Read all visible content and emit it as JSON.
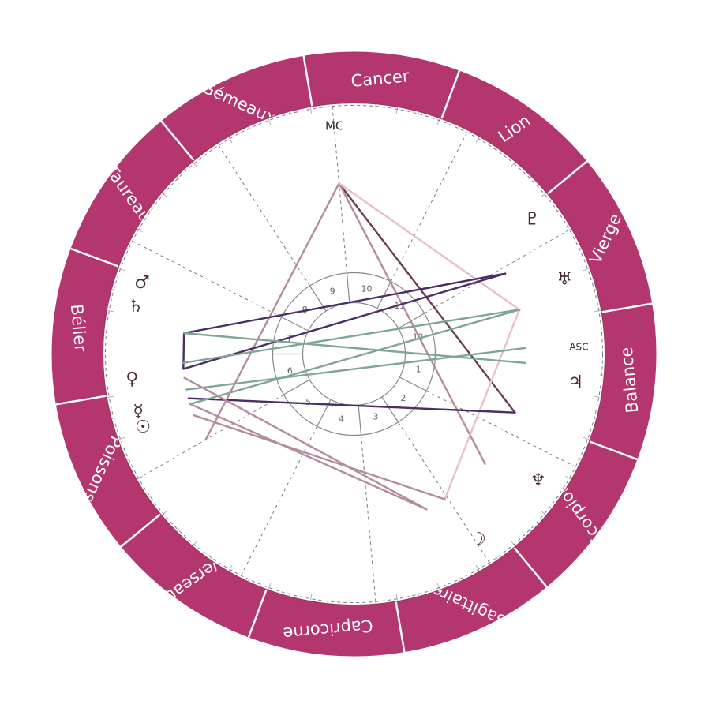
{
  "colors": {
    "ring": "#b3366f",
    "ring_divider": "#ffffff",
    "sign_text": "#ffffff",
    "dashed": "#7a7a7a",
    "inner_circle": "#888888",
    "glyph": "#4a2a32",
    "aspect_purple": "#4a2f66",
    "aspect_mauve": "#b48b9e",
    "aspect_green": "#7fa59b",
    "aspect_pink": "#e8bfd0",
    "aspect_plum": "#6b3a55"
  },
  "signs": [
    {
      "name": "Bélier",
      "start": -9.6
    },
    {
      "name": "Taureau",
      "start": 20.4
    },
    {
      "name": "Gémeaux",
      "start": 50.4
    },
    {
      "name": "Cancer",
      "start": 80.4
    },
    {
      "name": "Lion",
      "start": 110.4
    },
    {
      "name": "Vierge",
      "start": 140.4
    },
    {
      "name": "Balance",
      "start": 170.4
    },
    {
      "name": "Scorpion",
      "start": 200.4
    },
    {
      "name": "Sagittaire",
      "start": 230.4
    },
    {
      "name": "Capricorne",
      "start": 260.4
    },
    {
      "name": "Verseau",
      "start": 290.4
    },
    {
      "name": "Poissons",
      "start": 320.4
    }
  ],
  "houses": [
    {
      "number": "1",
      "cusp": 180
    },
    {
      "number": "2",
      "cusp": 207
    },
    {
      "number": "3",
      "cusp": 237
    },
    {
      "number": "4",
      "cusp": 265
    },
    {
      "number": "5",
      "cusp": 297
    },
    {
      "number": "6",
      "cusp": 330
    },
    {
      "number": "7",
      "cusp": 0
    },
    {
      "number": "8",
      "cusp": 27
    },
    {
      "number": "9",
      "cusp": 57
    },
    {
      "number": "10",
      "cusp": 85
    },
    {
      "number": "11",
      "cusp": 117
    },
    {
      "number": "12",
      "cusp": 150
    }
  ],
  "axes": {
    "asc_label": "ASC",
    "mc_label": "MC"
  },
  "planets": [
    {
      "key": "pluto",
      "glyph": "♇",
      "angle": 142.9
    },
    {
      "key": "uranus",
      "glyph": "♅",
      "angle": 160.5
    },
    {
      "key": "jupiter",
      "glyph": "♃",
      "angle": 187.3
    },
    {
      "key": "neptune",
      "glyph": "♆",
      "angle": 214.5
    },
    {
      "key": "moon",
      "glyph": "☽",
      "angle": 236.2
    },
    {
      "key": "mars",
      "glyph": "♂",
      "angle": 18.5
    },
    {
      "key": "saturn",
      "glyph": "♄",
      "angle": 12.2
    },
    {
      "key": "venus",
      "glyph": "♀",
      "angle": 353.5
    },
    {
      "key": "mercury",
      "glyph": "☿",
      "angle": 345
    },
    {
      "key": "sun",
      "glyph": "☉",
      "angle": 340.8
    }
  ],
  "aspects": [
    {
      "from": 85,
      "to": 200,
      "color": "aspect_plum"
    },
    {
      "from": 85,
      "to": 220,
      "color": "aspect_mauve"
    },
    {
      "from": 85,
      "to": 330,
      "color": "aspect_mauve"
    },
    {
      "from": 85,
      "to": 165,
      "color": "aspect_pink"
    },
    {
      "from": 165,
      "to": 238,
      "color": "aspect_pink"
    },
    {
      "from": 238,
      "to": 339,
      "color": "aspect_mauve"
    },
    {
      "from": 152,
      "to": 7,
      "color": "aspect_purple"
    },
    {
      "from": 152,
      "to": 355,
      "color": "aspect_purple"
    },
    {
      "from": 200,
      "to": 345,
      "color": "aspect_purple"
    },
    {
      "from": 7,
      "to": 355,
      "color": "aspect_purple"
    },
    {
      "from": 165,
      "to": 343,
      "color": "aspect_green"
    },
    {
      "from": 165,
      "to": 357,
      "color": "aspect_green"
    },
    {
      "from": 183,
      "to": 7,
      "color": "aspect_green"
    },
    {
      "from": 178,
      "to": 348,
      "color": "aspect_green"
    },
    {
      "from": 245,
      "to": 352,
      "color": "aspect_mauve"
    },
    {
      "from": 245,
      "to": 343,
      "color": "aspect_mauve"
    }
  ]
}
